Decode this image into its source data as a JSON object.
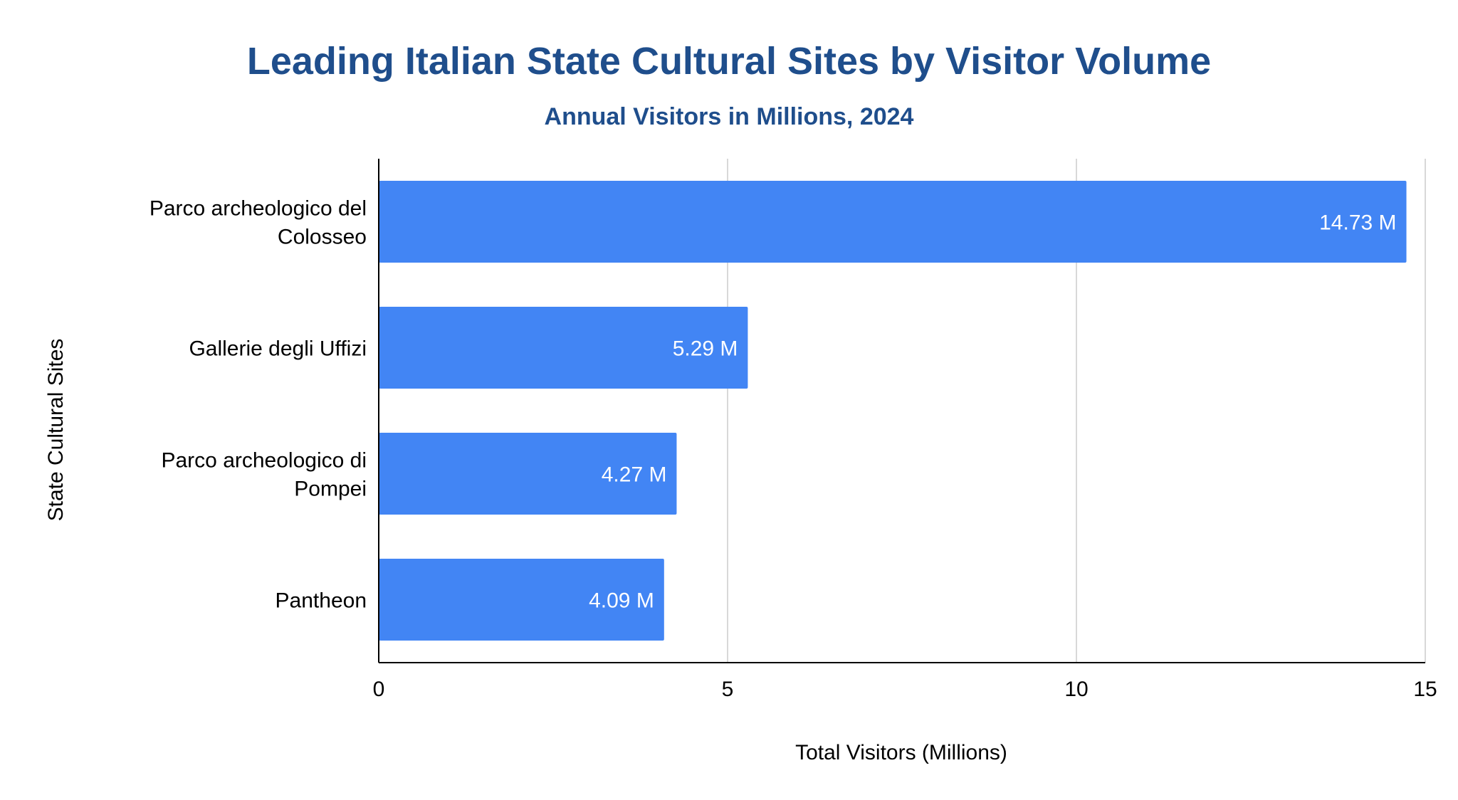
{
  "chart_data": {
    "type": "bar",
    "orientation": "horizontal",
    "title": "Leading Italian State Cultural Sites by Visitor Volume",
    "subtitle": "Annual Visitors in Millions, 2024",
    "xlabel": "Total Visitors (Millions)",
    "ylabel": "State Cultural Sites",
    "categories": [
      [
        "Parco archeologico del",
        "Colosseo"
      ],
      [
        "Gallerie degli Uffizi"
      ],
      [
        "Parco archeologico di",
        "Pompei"
      ],
      [
        "Pantheon"
      ]
    ],
    "values": [
      14.73,
      5.29,
      4.27,
      4.09
    ],
    "data_labels": [
      "14.73 M",
      "5.29 M",
      "4.27 M",
      "4.09 M"
    ],
    "xlim": [
      0,
      15
    ],
    "xticks": [
      0,
      5,
      10,
      15
    ],
    "xtick_labels": [
      "0",
      "5",
      "10",
      "15"
    ],
    "grid": true,
    "legend": "none",
    "bar_color": "#4285f4",
    "title_color": "#1f4e8c"
  }
}
